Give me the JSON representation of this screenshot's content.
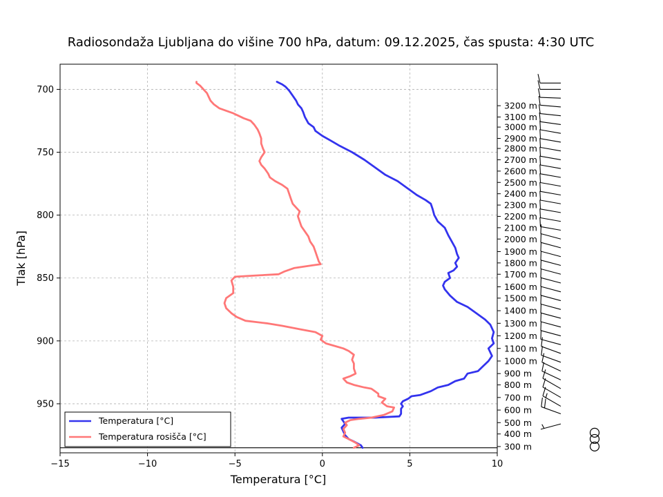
{
  "chart_data": {
    "type": "line",
    "title": "Radiosondaža Ljubljana do višine 700 hPa, datum: 09.12.2025, čas spusta: 4:30 UTC",
    "xlabel": "Temperatura [°C]",
    "ylabel": "Tlak [hPa]",
    "xlim": [
      -15,
      10
    ],
    "ylim": [
      989,
      680
    ],
    "x_ticks": [
      -15,
      -10,
      -5,
      0,
      5,
      10
    ],
    "x_tick_labels": [
      "−15",
      "−10",
      "−5",
      "0",
      "5",
      "10"
    ],
    "y_ticks": [
      700,
      750,
      800,
      850,
      900,
      950
    ],
    "y_tick_labels": [
      "700",
      "750",
      "800",
      "850",
      "900",
      "950"
    ],
    "grid": true,
    "legend_position": "bottom-left",
    "surface_pressure": 985,
    "series": [
      {
        "name": "Temperatura [°C]",
        "color": "#3333ee",
        "points": [
          [
            2.3,
            985
          ],
          [
            2.2,
            983
          ],
          [
            1.8,
            980
          ],
          [
            1.5,
            978
          ],
          [
            1.3,
            975
          ],
          [
            1.2,
            972
          ],
          [
            1.1,
            969
          ],
          [
            1.3,
            966
          ],
          [
            1.2,
            964
          ],
          [
            1.1,
            962
          ],
          [
            1.5,
            961
          ],
          [
            3.0,
            961
          ],
          [
            4.4,
            960
          ],
          [
            4.5,
            958
          ],
          [
            4.5,
            954
          ],
          [
            4.6,
            952
          ],
          [
            4.5,
            950
          ],
          [
            4.6,
            948
          ],
          [
            4.9,
            946
          ],
          [
            5.1,
            944
          ],
          [
            5.6,
            943
          ],
          [
            6.2,
            940
          ],
          [
            6.6,
            937
          ],
          [
            7.2,
            935
          ],
          [
            7.6,
            932
          ],
          [
            8.1,
            930
          ],
          [
            8.3,
            926
          ],
          [
            8.9,
            924
          ],
          [
            9.2,
            920
          ],
          [
            9.5,
            916
          ],
          [
            9.7,
            912
          ],
          [
            9.5,
            906
          ],
          [
            9.8,
            902
          ],
          [
            9.7,
            898
          ],
          [
            9.8,
            893
          ],
          [
            9.6,
            887
          ],
          [
            9.3,
            883
          ],
          [
            8.7,
            877
          ],
          [
            8.3,
            873
          ],
          [
            7.7,
            869
          ],
          [
            7.3,
            864
          ],
          [
            7.0,
            859
          ],
          [
            6.9,
            856
          ],
          [
            7.0,
            853
          ],
          [
            7.3,
            850
          ],
          [
            7.2,
            846
          ],
          [
            7.5,
            844
          ],
          [
            7.7,
            841
          ],
          [
            7.6,
            838
          ],
          [
            7.8,
            834
          ],
          [
            7.7,
            831
          ],
          [
            7.6,
            826
          ],
          [
            7.4,
            821
          ],
          [
            7.2,
            816
          ],
          [
            7.0,
            810
          ],
          [
            6.6,
            805
          ],
          [
            6.4,
            800
          ],
          [
            6.3,
            795
          ],
          [
            6.2,
            791
          ],
          [
            5.9,
            788
          ],
          [
            5.4,
            784
          ],
          [
            4.9,
            779
          ],
          [
            4.3,
            773
          ],
          [
            3.6,
            768
          ],
          [
            3.0,
            762
          ],
          [
            2.4,
            756
          ],
          [
            1.7,
            750
          ],
          [
            1.0,
            745
          ],
          [
            0.5,
            741
          ],
          [
            0.0,
            737
          ],
          [
            -0.4,
            733
          ],
          [
            -0.5,
            730
          ],
          [
            -0.8,
            727
          ],
          [
            -1.0,
            722
          ],
          [
            -1.1,
            718
          ],
          [
            -1.2,
            715
          ],
          [
            -1.4,
            712
          ],
          [
            -1.5,
            709
          ],
          [
            -1.7,
            705
          ],
          [
            -1.9,
            701
          ],
          [
            -2.1,
            698
          ],
          [
            -2.3,
            696
          ],
          [
            -2.6,
            694
          ]
        ]
      },
      {
        "name": "Temperatura rosišča [°C]",
        "color": "#ff7777",
        "points": [
          [
            1.8,
            985
          ],
          [
            2.1,
            983
          ],
          [
            1.9,
            981
          ],
          [
            1.5,
            978
          ],
          [
            1.2,
            976
          ],
          [
            1.3,
            973
          ],
          [
            1.2,
            970
          ],
          [
            1.4,
            967
          ],
          [
            1.3,
            965
          ],
          [
            1.6,
            963
          ],
          [
            2.1,
            962
          ],
          [
            2.8,
            961
          ],
          [
            3.5,
            959
          ],
          [
            4.0,
            956
          ],
          [
            4.1,
            953
          ],
          [
            3.7,
            952
          ],
          [
            3.4,
            949
          ],
          [
            3.6,
            946
          ],
          [
            3.2,
            944
          ],
          [
            3.2,
            942
          ],
          [
            3.0,
            940
          ],
          [
            2.8,
            938
          ],
          [
            2.4,
            937
          ],
          [
            1.8,
            935
          ],
          [
            1.4,
            933
          ],
          [
            1.2,
            930
          ],
          [
            1.6,
            928
          ],
          [
            1.9,
            926
          ],
          [
            1.8,
            922
          ],
          [
            1.8,
            918
          ],
          [
            1.7,
            915
          ],
          [
            1.8,
            911
          ],
          [
            1.5,
            908
          ],
          [
            1.2,
            906
          ],
          [
            0.7,
            904
          ],
          [
            0.2,
            902
          ],
          [
            -0.1,
            899
          ],
          [
            0.0,
            896
          ],
          [
            -0.4,
            893
          ],
          [
            -1.2,
            891
          ],
          [
            -2.3,
            888
          ],
          [
            -3.2,
            886
          ],
          [
            -3.8,
            885
          ],
          [
            -4.4,
            884
          ],
          [
            -4.9,
            881
          ],
          [
            -5.2,
            878
          ],
          [
            -5.5,
            874
          ],
          [
            -5.6,
            870
          ],
          [
            -5.5,
            866
          ],
          [
            -5.1,
            862
          ],
          [
            -5.1,
            857
          ],
          [
            -5.2,
            852
          ],
          [
            -5.0,
            849
          ],
          [
            -3.8,
            848
          ],
          [
            -2.5,
            847
          ],
          [
            -2.2,
            845
          ],
          [
            -1.6,
            842
          ],
          [
            -0.6,
            840
          ],
          [
            -0.1,
            839
          ],
          [
            -0.2,
            837
          ],
          [
            -0.3,
            833
          ],
          [
            -0.4,
            829
          ],
          [
            -0.5,
            825
          ],
          [
            -0.7,
            821
          ],
          [
            -0.8,
            817
          ],
          [
            -1.0,
            813
          ],
          [
            -1.2,
            809
          ],
          [
            -1.3,
            805
          ],
          [
            -1.4,
            801
          ],
          [
            -1.3,
            797
          ],
          [
            -1.5,
            794
          ],
          [
            -1.7,
            791
          ],
          [
            -1.8,
            787
          ],
          [
            -1.9,
            783
          ],
          [
            -2.0,
            779
          ],
          [
            -2.3,
            776
          ],
          [
            -2.7,
            773
          ],
          [
            -3.0,
            770
          ],
          [
            -3.1,
            767
          ],
          [
            -3.3,
            763
          ],
          [
            -3.5,
            760
          ],
          [
            -3.6,
            757
          ],
          [
            -3.5,
            754
          ],
          [
            -3.3,
            750
          ],
          [
            -3.4,
            747
          ],
          [
            -3.5,
            743
          ],
          [
            -3.5,
            739
          ],
          [
            -3.6,
            735
          ],
          [
            -3.7,
            732
          ],
          [
            -3.9,
            728
          ],
          [
            -4.1,
            725
          ],
          [
            -4.5,
            723
          ],
          [
            -4.8,
            721
          ],
          [
            -5.1,
            719
          ],
          [
            -5.5,
            717
          ],
          [
            -5.9,
            715
          ],
          [
            -6.2,
            712
          ],
          [
            -6.4,
            709
          ],
          [
            -6.5,
            706
          ],
          [
            -6.6,
            703
          ],
          [
            -6.8,
            700
          ],
          [
            -7.0,
            697
          ],
          [
            -7.2,
            695
          ],
          [
            -7.2,
            694
          ]
        ]
      }
    ],
    "altitude_levels": [
      {
        "label": "300 m",
        "p": 984
      },
      {
        "label": "400 m",
        "p": 974
      },
      {
        "label": "500 m",
        "p": 965
      },
      {
        "label": "600 m",
        "p": 955
      },
      {
        "label": "700 m",
        "p": 945
      },
      {
        "label": "800 m",
        "p": 935
      },
      {
        "label": "900 m",
        "p": 926
      },
      {
        "label": "1000 m",
        "p": 916
      },
      {
        "label": "1100 m",
        "p": 906
      },
      {
        "label": "1200 m",
        "p": 896
      },
      {
        "label": "1300 m",
        "p": 886
      },
      {
        "label": "1400 m",
        "p": 876
      },
      {
        "label": "1500 m",
        "p": 866
      },
      {
        "label": "1600 m",
        "p": 857
      },
      {
        "label": "1700 m",
        "p": 847
      },
      {
        "label": "1800 m",
        "p": 838
      },
      {
        "label": "1900 m",
        "p": 829
      },
      {
        "label": "2000 m",
        "p": 819
      },
      {
        "label": "2100 m",
        "p": 810
      },
      {
        "label": "2200 m",
        "p": 801
      },
      {
        "label": "2300 m",
        "p": 792
      },
      {
        "label": "2400 m",
        "p": 783
      },
      {
        "label": "2500 m",
        "p": 774
      },
      {
        "label": "2600 m",
        "p": 765
      },
      {
        "label": "2700 m",
        "p": 756
      },
      {
        "label": "2800 m",
        "p": 747
      },
      {
        "label": "2900 m",
        "p": 739
      },
      {
        "label": "3000 m",
        "p": 730
      },
      {
        "label": "3100 m",
        "p": 722
      },
      {
        "label": "3200 m",
        "p": 713
      }
    ],
    "wind_barbs": [
      {
        "p": 984,
        "calm": true
      },
      {
        "p": 978,
        "calm": true
      },
      {
        "p": 973,
        "calm": true
      },
      {
        "p": 966,
        "dir": 255,
        "speed_kt": 5
      },
      {
        "p": 958,
        "dir": 290,
        "speed_kt": 20
      },
      {
        "p": 952,
        "dir": 300,
        "speed_kt": 15
      },
      {
        "p": 945,
        "dir": 300,
        "speed_kt": 10
      },
      {
        "p": 938,
        "dir": 300,
        "speed_kt": 10
      },
      {
        "p": 931,
        "dir": 295,
        "speed_kt": 10
      },
      {
        "p": 924,
        "dir": 295,
        "speed_kt": 10
      },
      {
        "p": 917,
        "dir": 290,
        "speed_kt": 10
      },
      {
        "p": 910,
        "dir": 290,
        "speed_kt": 10
      },
      {
        "p": 903,
        "dir": 285,
        "speed_kt": 10
      },
      {
        "p": 896,
        "dir": 285,
        "speed_kt": 10
      },
      {
        "p": 889,
        "dir": 285,
        "speed_kt": 10
      },
      {
        "p": 882,
        "dir": 285,
        "speed_kt": 10
      },
      {
        "p": 875,
        "dir": 285,
        "speed_kt": 10
      },
      {
        "p": 868,
        "dir": 285,
        "speed_kt": 10
      },
      {
        "p": 861,
        "dir": 285,
        "speed_kt": 10
      },
      {
        "p": 854,
        "dir": 285,
        "speed_kt": 10
      },
      {
        "p": 847,
        "dir": 285,
        "speed_kt": 10
      },
      {
        "p": 840,
        "dir": 285,
        "speed_kt": 10
      },
      {
        "p": 833,
        "dir": 285,
        "speed_kt": 10
      },
      {
        "p": 826,
        "dir": 285,
        "speed_kt": 10
      },
      {
        "p": 819,
        "dir": 285,
        "speed_kt": 10
      },
      {
        "p": 812,
        "dir": 280,
        "speed_kt": 10
      },
      {
        "p": 805,
        "dir": 280,
        "speed_kt": 10
      },
      {
        "p": 798,
        "dir": 280,
        "speed_kt": 10
      },
      {
        "p": 791,
        "dir": 280,
        "speed_kt": 10
      },
      {
        "p": 784,
        "dir": 280,
        "speed_kt": 10
      },
      {
        "p": 777,
        "dir": 280,
        "speed_kt": 10
      },
      {
        "p": 770,
        "dir": 280,
        "speed_kt": 10
      },
      {
        "p": 763,
        "dir": 280,
        "speed_kt": 10
      },
      {
        "p": 756,
        "dir": 280,
        "speed_kt": 10
      },
      {
        "p": 749,
        "dir": 280,
        "speed_kt": 10
      },
      {
        "p": 742,
        "dir": 280,
        "speed_kt": 10
      },
      {
        "p": 735,
        "dir": 280,
        "speed_kt": 10
      },
      {
        "p": 728,
        "dir": 278,
        "speed_kt": 10
      },
      {
        "p": 721,
        "dir": 276,
        "speed_kt": 10
      },
      {
        "p": 714,
        "dir": 275,
        "speed_kt": 10
      },
      {
        "p": 707,
        "dir": 272,
        "speed_kt": 10
      },
      {
        "p": 700,
        "dir": 270,
        "speed_kt": 10
      },
      {
        "p": 695,
        "dir": 270,
        "speed_kt": 10
      }
    ]
  }
}
